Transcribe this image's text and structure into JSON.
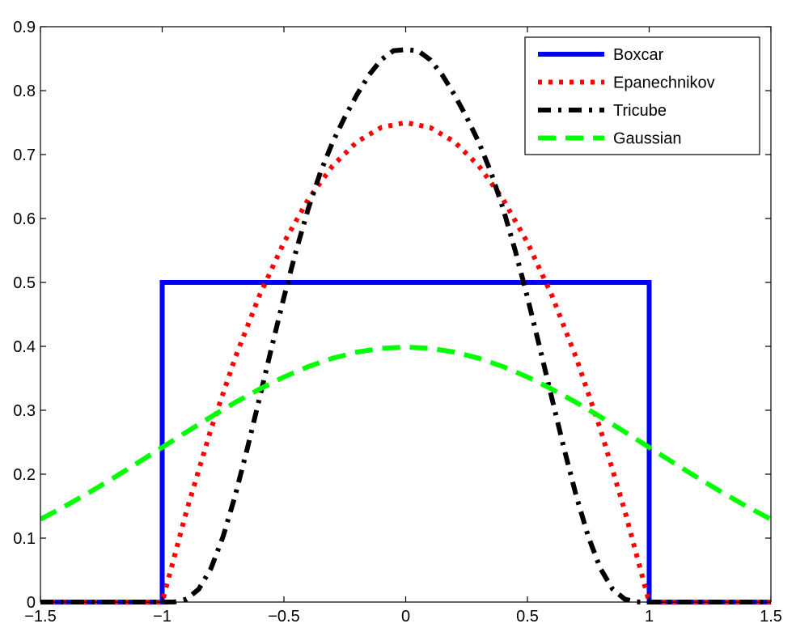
{
  "chart_data": {
    "type": "line",
    "title": "",
    "xlabel": "",
    "ylabel": "",
    "xlim": [
      -1.5,
      1.5
    ],
    "ylim": [
      0,
      0.9
    ],
    "xticks": [
      -1.5,
      -1,
      -0.5,
      0,
      0.5,
      1,
      1.5
    ],
    "xtick_labels": [
      "−1.5",
      "−1",
      "−0.5",
      "0",
      "0.5",
      "1",
      "1.5"
    ],
    "yticks": [
      0,
      0.1,
      0.2,
      0.3,
      0.4,
      0.5,
      0.6,
      0.7,
      0.8,
      0.9
    ],
    "ytick_labels": [
      "0",
      "0.1",
      "0.2",
      "0.3",
      "0.4",
      "0.5",
      "0.6",
      "0.7",
      "0.8",
      "0.9"
    ],
    "grid": false,
    "legend_position": "top-right",
    "series": [
      {
        "name": "Boxcar",
        "color": "#0000ff",
        "style": "solid",
        "x": [
          -1.5,
          -1,
          -1,
          1,
          1,
          1.5
        ],
        "y": [
          0,
          0,
          0.5,
          0.5,
          0,
          0
        ]
      },
      {
        "name": "Epanechnikov",
        "color": "#ff0000",
        "style": "dotted",
        "x": [
          -1.5,
          -1.0,
          -0.9,
          -0.8,
          -0.7,
          -0.6,
          -0.5,
          -0.4,
          -0.3,
          -0.2,
          -0.1,
          0.0,
          0.1,
          0.2,
          0.3,
          0.4,
          0.5,
          0.6,
          0.7,
          0.8,
          0.9,
          1.0,
          1.5
        ],
        "y": [
          0,
          0,
          0.1425,
          0.27,
          0.3825,
          0.48,
          0.5625,
          0.63,
          0.6825,
          0.72,
          0.7425,
          0.75,
          0.7425,
          0.72,
          0.6825,
          0.63,
          0.5625,
          0.48,
          0.3825,
          0.27,
          0.1425,
          0,
          0
        ]
      },
      {
        "name": "Tricube",
        "color": "#000000",
        "style": "dashdot",
        "x": [
          -1.5,
          -1.0,
          -0.95,
          -0.9,
          -0.85,
          -0.8,
          -0.75,
          -0.7,
          -0.65,
          -0.6,
          -0.55,
          -0.5,
          -0.45,
          -0.4,
          -0.35,
          -0.3,
          -0.25,
          -0.2,
          -0.15,
          -0.1,
          -0.05,
          0.0,
          0.05,
          0.1,
          0.15,
          0.2,
          0.25,
          0.3,
          0.35,
          0.4,
          0.45,
          0.5,
          0.55,
          0.6,
          0.65,
          0.7,
          0.75,
          0.8,
          0.85,
          0.9,
          0.95,
          1.0,
          1.5
        ],
        "y": [
          0,
          0,
          0.0002,
          0.0045,
          0.0201,
          0.0523,
          0.1023,
          0.1668,
          0.2408,
          0.3195,
          0.3992,
          0.4768,
          0.5496,
          0.6155,
          0.6724,
          0.7194,
          0.7586,
          0.7938,
          0.8247,
          0.8485,
          0.8624,
          0.8642,
          0.8624,
          0.8485,
          0.8247,
          0.7938,
          0.7586,
          0.7194,
          0.6724,
          0.6155,
          0.5496,
          0.4768,
          0.3992,
          0.3195,
          0.2408,
          0.1668,
          0.1023,
          0.0523,
          0.0201,
          0.0045,
          0.0002,
          0,
          0
        ]
      },
      {
        "name": "Gaussian",
        "color": "#00ff00",
        "style": "dashed",
        "x": [
          -1.5,
          -1.4,
          -1.3,
          -1.2,
          -1.1,
          -1.0,
          -0.9,
          -0.8,
          -0.7,
          -0.6,
          -0.5,
          -0.4,
          -0.3,
          -0.2,
          -0.1,
          0.0,
          0.1,
          0.2,
          0.3,
          0.4,
          0.5,
          0.6,
          0.7,
          0.8,
          0.9,
          1.0,
          1.1,
          1.2,
          1.3,
          1.4,
          1.5
        ],
        "y": [
          0.1295,
          0.1497,
          0.1714,
          0.1942,
          0.2179,
          0.242,
          0.2661,
          0.2897,
          0.3123,
          0.3332,
          0.3521,
          0.3683,
          0.3814,
          0.391,
          0.397,
          0.3989,
          0.397,
          0.391,
          0.3814,
          0.3683,
          0.3521,
          0.3332,
          0.3123,
          0.2897,
          0.2661,
          0.242,
          0.2179,
          0.1942,
          0.1714,
          0.1497,
          0.1295
        ]
      }
    ]
  }
}
